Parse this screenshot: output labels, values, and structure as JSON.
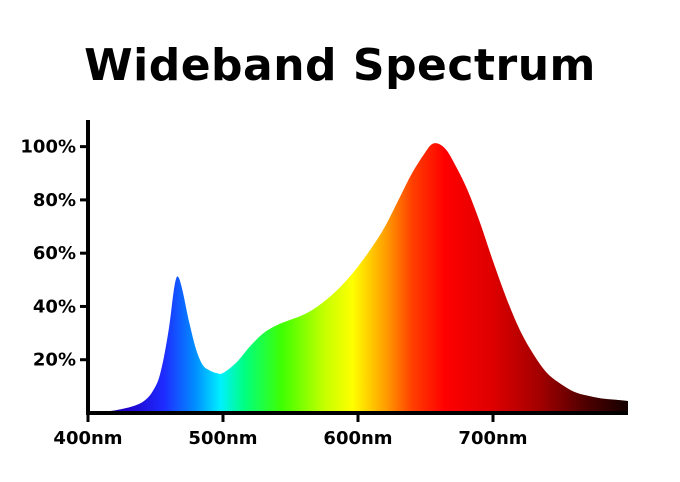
{
  "chart_data": {
    "type": "area",
    "title": "Wideband Spectrum",
    "xlabel": "",
    "ylabel": "",
    "xlim": [
      400,
      800
    ],
    "ylim": [
      0,
      110
    ],
    "x_ticks": [
      400,
      500,
      600,
      700
    ],
    "x_tick_labels": [
      "400nm",
      "500nm",
      "600nm",
      "700nm"
    ],
    "y_ticks": [
      20,
      40,
      60,
      80,
      100
    ],
    "y_tick_labels": [
      "20%",
      "40%",
      "60%",
      "80%",
      "100%"
    ],
    "grid": false,
    "fill": "visible-spectrum color gradient",
    "series": [
      {
        "x": [
          400,
          420,
          440,
          450,
          455,
          460,
          463,
          465,
          467,
          470,
          475,
          480,
          485,
          490,
          495,
          500,
          510,
          520,
          530,
          540,
          550,
          560,
          570,
          580,
          590,
          600,
          610,
          620,
          630,
          640,
          650,
          655,
          660,
          665,
          670,
          680,
          690,
          700,
          710,
          720,
          730,
          740,
          750,
          760,
          770,
          780,
          790,
          800
        ],
        "y": [
          0.5,
          1,
          4,
          10,
          18,
          32,
          44,
          50,
          51,
          46,
          34,
          24,
          18,
          16,
          15,
          15,
          19,
          25,
          30,
          33,
          35,
          37,
          40,
          44,
          49,
          55,
          62,
          70,
          80,
          90,
          98,
          101,
          101,
          99,
          95,
          85,
          72,
          57,
          43,
          31,
          22,
          15,
          11,
          8,
          6.5,
          5.5,
          5,
          4.5
        ]
      }
    ]
  }
}
